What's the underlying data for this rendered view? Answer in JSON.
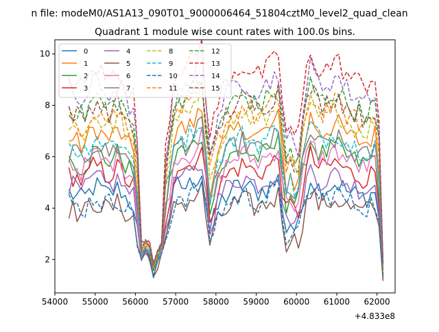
{
  "chart_data": {
    "type": "line",
    "suptitle": "n file: modeM0/AS1A13_090T01_9000006464_51804cztM0_level2_quad_clean",
    "title": "Quadrant 1 module wise count rates with 100.0s bins.",
    "xlabel": "",
    "ylabel": "",
    "x_offset_label": "+4.833e8",
    "xlim": [
      54000,
      62450
    ],
    "ylim": [
      0.7,
      10.55
    ],
    "xticks": [
      54000,
      55000,
      56000,
      57000,
      58000,
      59000,
      60000,
      61000,
      62000
    ],
    "xtick_labels": [
      "54000",
      "55000",
      "56000",
      "57000",
      "58000",
      "59000",
      "60000",
      "61000",
      "62000"
    ],
    "yticks": [
      2,
      4,
      6,
      8,
      10
    ],
    "ytick_labels": [
      "2",
      "4",
      "6",
      "8",
      "10"
    ],
    "grid": false,
    "legend_position": "top-left",
    "x_anchors": [
      54350,
      54700,
      55000,
      55300,
      55600,
      55800,
      56000,
      56100,
      56300,
      56450,
      56700,
      57000,
      57300,
      57700,
      57800,
      58100,
      58400,
      58700,
      59000,
      59300,
      59600,
      59700,
      59900,
      60000,
      60200,
      60350,
      60600,
      61000,
      61300,
      61700,
      61900,
      62000,
      62150
    ],
    "base_shape": [
      4.6,
      4.3,
      4.9,
      4.5,
      4.8,
      4.3,
      4.1,
      2.0,
      2.5,
      1.4,
      2.6,
      4.9,
      4.8,
      5.5,
      2.9,
      4.2,
      4.7,
      4.9,
      4.6,
      4.8,
      5.2,
      3.0,
      3.6,
      2.8,
      4.5,
      5.2,
      4.7,
      5.0,
      4.6,
      4.4,
      4.6,
      4.7,
      1.4
    ],
    "series": [
      {
        "name": "0",
        "color": "#1f77b4",
        "dash": "solid",
        "offset": 0.0,
        "scale": 1.0
      },
      {
        "name": "1",
        "color": "#ff7f0e",
        "dash": "solid",
        "offset": 1.6,
        "scale": 1.3
      },
      {
        "name": "2",
        "color": "#2ca02c",
        "dash": "solid",
        "offset": 1.0,
        "scale": 1.18
      },
      {
        "name": "3",
        "color": "#d62728",
        "dash": "solid",
        "offset": 0.6,
        "scale": 1.1
      },
      {
        "name": "4",
        "color": "#9467bd",
        "dash": "solid",
        "offset": 0.25,
        "scale": 1.04
      },
      {
        "name": "5",
        "color": "#8c564b",
        "dash": "solid",
        "offset": -0.45,
        "scale": 0.92
      },
      {
        "name": "6",
        "color": "#e377c2",
        "dash": "solid",
        "offset": 0.9,
        "scale": 1.16
      },
      {
        "name": "7",
        "color": "#7f7f7f",
        "dash": "solid",
        "offset": 1.2,
        "scale": 1.22
      },
      {
        "name": "8",
        "color": "#bcbd22",
        "dash": "dashed",
        "offset": 2.0,
        "scale": 1.36
      },
      {
        "name": "9",
        "color": "#17becf",
        "dash": "dashed",
        "offset": 1.4,
        "scale": 1.26
      },
      {
        "name": "10",
        "color": "#1f77b4",
        "dash": "dashed",
        "offset": -0.3,
        "scale": 0.95
      },
      {
        "name": "11",
        "color": "#ff7f0e",
        "dash": "dashed",
        "offset": 2.2,
        "scale": 1.4
      },
      {
        "name": "12",
        "color": "#2ca02c",
        "dash": "dashed",
        "offset": 2.5,
        "scale": 1.46
      },
      {
        "name": "13",
        "color": "#d62728",
        "dash": "dashed",
        "offset": 3.3,
        "scale": 1.62
      },
      {
        "name": "14",
        "color": "#9467bd",
        "dash": "dashed",
        "offset": 2.9,
        "scale": 1.54
      },
      {
        "name": "15",
        "color": "#8c564b",
        "dash": "dashed",
        "offset": 2.4,
        "scale": 1.44
      }
    ]
  }
}
